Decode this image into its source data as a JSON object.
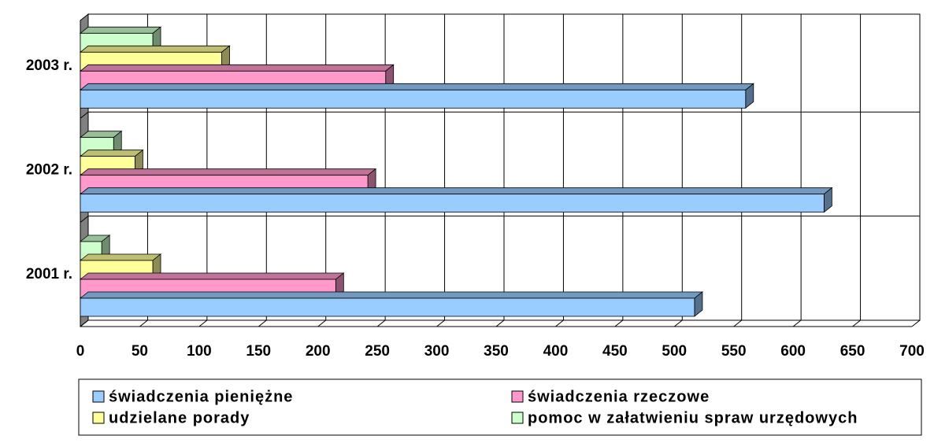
{
  "chart_data": {
    "type": "bar3d_horizontal",
    "categories": [
      "2001 r.",
      "2002 r.",
      "2003 r."
    ],
    "series": [
      {
        "name": "świadczenia pieniężne",
        "color": "#99ccff",
        "values": [
          517,
          626,
          560
        ]
      },
      {
        "name": "świadczenia rzeczowe",
        "color": "#ff99cc",
        "values": [
          215,
          242,
          257
        ]
      },
      {
        "name": "udzielane porady",
        "color": "#ffff99",
        "values": [
          61,
          46,
          119
        ]
      },
      {
        "name": "pomoc w załatwieniu spraw urzędowych",
        "color": "#ccffcc",
        "values": [
          18,
          28,
          61
        ]
      }
    ],
    "xlim": [
      0,
      700
    ],
    "xticks": [
      0,
      50,
      100,
      150,
      200,
      250,
      300,
      350,
      400,
      450,
      500,
      550,
      600,
      650,
      700
    ],
    "grid": true
  }
}
